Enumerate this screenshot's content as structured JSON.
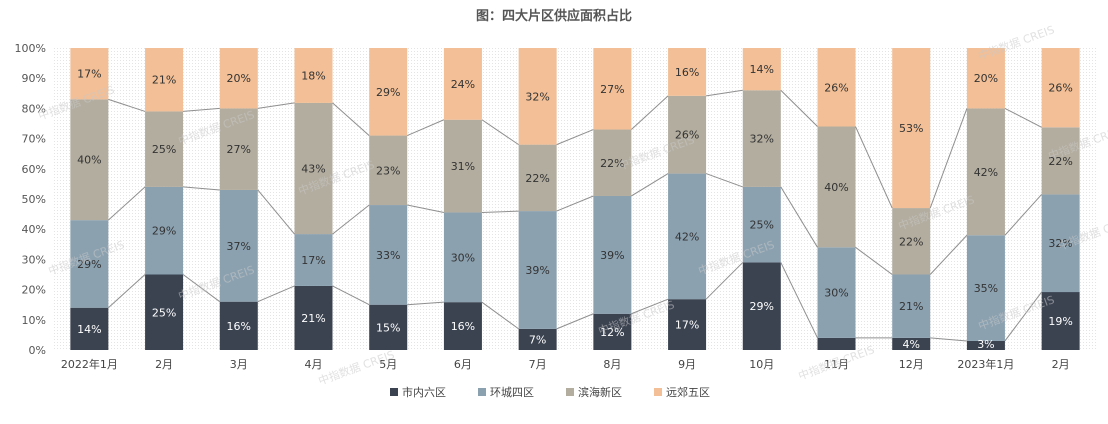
{
  "chart_data": {
    "type": "bar",
    "stacked": true,
    "percent": true,
    "title": "图：四大片区供应面积占比",
    "categories": [
      "2022年1月",
      "2月",
      "3月",
      "4月",
      "5月",
      "6月",
      "7月",
      "8月",
      "9月",
      "10月",
      "11月",
      "12月",
      "2023年1月",
      "2月"
    ],
    "series": [
      {
        "name": "市内六区",
        "color": "#3b4351",
        "values": [
          14,
          25,
          16,
          21,
          15,
          16,
          7,
          12,
          17,
          29,
          4,
          4,
          3,
          19
        ],
        "labels": [
          "14%",
          "25%",
          "16%",
          "21%",
          "15%",
          "16%",
          "7%",
          "12%",
          "17%",
          "29%",
          "",
          "4%",
          "3%",
          "19%"
        ]
      },
      {
        "name": "环城四区",
        "color": "#8ba1b0",
        "values": [
          29,
          29,
          37,
          17,
          33,
          30,
          39,
          39,
          42,
          25,
          30,
          21,
          35,
          32
        ],
        "labels": [
          "29%",
          "29%",
          "37%",
          "17%",
          "33%",
          "30%",
          "39%",
          "39%",
          "42%",
          "25%",
          "30%",
          "21%",
          "35%",
          "32%"
        ]
      },
      {
        "name": "滨海新区",
        "color": "#b3ad9f",
        "values": [
          40,
          25,
          27,
          43,
          23,
          31,
          22,
          22,
          26,
          32,
          40,
          22,
          42,
          22
        ],
        "labels": [
          "40%",
          "25%",
          "27%",
          "43%",
          "23%",
          "31%",
          "22%",
          "22%",
          "26%",
          "32%",
          "40%",
          "22%",
          "42%",
          "22%"
        ]
      },
      {
        "name": "远郊五区",
        "color": "#f2bf96",
        "values": [
          17,
          21,
          20,
          18,
          29,
          24,
          32,
          27,
          16,
          14,
          26,
          53,
          20,
          26
        ],
        "labels": [
          "17%",
          "21%",
          "20%",
          "18%",
          "29%",
          "24%",
          "32%",
          "27%",
          "16%",
          "14%",
          "26%",
          "53%",
          "20%",
          "26%"
        ]
      }
    ],
    "yticks": [
      "0%",
      "10%",
      "20%",
      "30%",
      "40%",
      "50%",
      "60%",
      "70%",
      "80%",
      "90%",
      "100%"
    ],
    "ylim": [
      0,
      100
    ],
    "legend_position": "bottom",
    "watermark": "中指数据 CREIS"
  }
}
